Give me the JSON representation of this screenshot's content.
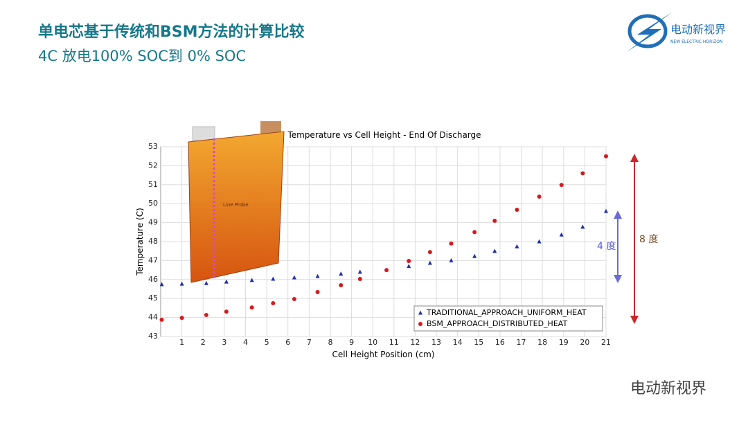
{
  "slide": {
    "title": "单电芯基于传统和BSM方法的计算比较",
    "subtitle": "4C 放电100% SOC到 0% SOC",
    "logo_text": "电动新视界",
    "logo_subtext": "NEW ELECTRIC HORIZON",
    "watermark": "电动新视界",
    "probe_label": "Line Probe",
    "annotations": [
      "4 度",
      "8 度"
    ]
  },
  "chart_data": {
    "type": "scatter",
    "title": "Temperature vs Cell Height - End Of Discharge",
    "x_label": "Cell Height Position (cm)",
    "y_label": "Temperature (C)",
    "xlim": [
      0,
      21
    ],
    "ylim": [
      43,
      53
    ],
    "xticks": [
      1,
      2,
      3,
      4,
      5,
      6,
      7,
      8,
      9,
      10,
      11,
      12,
      13,
      14,
      15,
      16,
      17,
      18,
      19,
      20,
      21
    ],
    "yticks": [
      43,
      44,
      45,
      46,
      47,
      48,
      49,
      50,
      51,
      52,
      53
    ],
    "grid": true,
    "legend": "lower right",
    "series": [
      {
        "name": "TRADITIONAL_APPROACH_UNIFORM_HEAT",
        "color": "#1f2fb0",
        "marker": "triangle",
        "x": [
          0.05,
          1.0,
          2.15,
          3.1,
          4.3,
          5.3,
          6.3,
          7.4,
          8.5,
          9.4,
          11.7,
          12.7,
          13.7,
          14.8,
          15.75,
          16.8,
          17.85,
          18.9,
          19.9,
          21
        ],
        "values": [
          45.74,
          45.77,
          45.8,
          45.88,
          45.96,
          46.03,
          46.1,
          46.17,
          46.3,
          46.4,
          46.7,
          46.87,
          47.0,
          47.23,
          47.5,
          47.74,
          48.0,
          48.36,
          48.77,
          49.6
        ]
      },
      {
        "name": "BSM_APPROACH_DISTRIBUTED_HEAT",
        "color": "#d8191c",
        "marker": "circle",
        "x": [
          0.05,
          1.0,
          2.15,
          3.1,
          4.3,
          5.3,
          6.3,
          7.4,
          8.5,
          9.4,
          10.65,
          11.7,
          12.7,
          13.7,
          14.8,
          15.75,
          16.8,
          17.85,
          18.9,
          19.9,
          21
        ],
        "values": [
          43.88,
          43.98,
          44.13,
          44.31,
          44.53,
          44.75,
          44.97,
          45.34,
          45.7,
          46.03,
          46.5,
          46.98,
          47.45,
          47.9,
          48.5,
          49.1,
          49.68,
          50.37,
          50.99,
          51.6,
          52.5
        ]
      }
    ]
  }
}
